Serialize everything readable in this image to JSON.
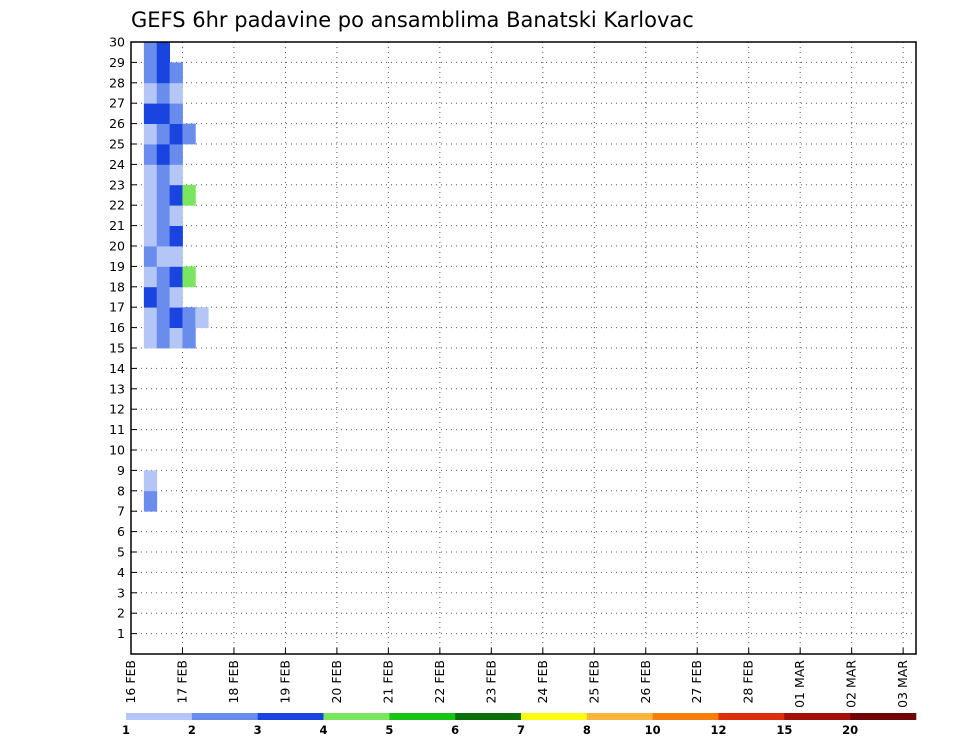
{
  "chart_data": {
    "type": "heatmap",
    "title": "GEFS 6hr padavine po ansamblima Banatski Karlovac",
    "xlabel": "",
    "ylabel": "",
    "x_tick_labels": [
      "16 FEB",
      "17 FEB",
      "18 FEB",
      "19 FEB",
      "20 FEB",
      "21 FEB",
      "22 FEB",
      "23 FEB",
      "24 FEB",
      "25 FEB",
      "26 FEB",
      "27 FEB",
      "28 FEB",
      "01 MAR",
      "02 MAR",
      "03 MAR"
    ],
    "y_range": [
      0,
      30
    ],
    "y_tick_labels": [
      "1",
      "2",
      "3",
      "4",
      "5",
      "6",
      "7",
      "8",
      "9",
      "10",
      "11",
      "12",
      "13",
      "14",
      "15",
      "16",
      "17",
      "18",
      "19",
      "20",
      "21",
      "22",
      "23",
      "24",
      "25",
      "26",
      "27",
      "28",
      "29",
      "30"
    ],
    "time_steps": 61,
    "grid": true,
    "colorbar": {
      "colors": [
        "#b4c6f5",
        "#6a8ced",
        "#1a44e0",
        "#7ae65f",
        "#16c414",
        "#0d6e0d",
        "#fbfb14",
        "#fbb43c",
        "#f77d0c",
        "#dd2e0a",
        "#a31008",
        "#6e0606"
      ],
      "labels": [
        "1",
        "2",
        "3",
        "4",
        "5",
        "6",
        "7",
        "8",
        "10",
        "12",
        "15",
        "20"
      ]
    },
    "cells": [
      [
        8,
        1,
        2
      ],
      [
        9,
        1,
        1
      ],
      [
        16,
        1,
        1
      ],
      [
        16,
        2,
        2
      ],
      [
        16,
        3,
        1
      ],
      [
        16,
        4,
        2
      ],
      [
        17,
        1,
        1
      ],
      [
        17,
        2,
        2
      ],
      [
        17,
        3,
        3
      ],
      [
        17,
        4,
        2
      ],
      [
        17,
        5,
        1
      ],
      [
        18,
        1,
        3
      ],
      [
        18,
        2,
        2
      ],
      [
        18,
        3,
        1
      ],
      [
        19,
        1,
        1
      ],
      [
        19,
        2,
        2
      ],
      [
        19,
        3,
        3
      ],
      [
        19,
        4,
        4
      ],
      [
        20,
        1,
        2
      ],
      [
        20,
        2,
        1
      ],
      [
        20,
        3,
        1
      ],
      [
        21,
        1,
        1
      ],
      [
        21,
        2,
        2
      ],
      [
        21,
        3,
        3
      ],
      [
        22,
        1,
        1
      ],
      [
        22,
        2,
        2
      ],
      [
        22,
        3,
        1
      ],
      [
        23,
        1,
        1
      ],
      [
        23,
        2,
        2
      ],
      [
        23,
        3,
        3
      ],
      [
        23,
        4,
        4
      ],
      [
        24,
        1,
        1
      ],
      [
        24,
        2,
        2
      ],
      [
        24,
        3,
        1
      ],
      [
        25,
        1,
        2
      ],
      [
        25,
        2,
        3
      ],
      [
        25,
        3,
        2
      ],
      [
        26,
        1,
        1
      ],
      [
        26,
        2,
        2
      ],
      [
        26,
        3,
        3
      ],
      [
        26,
        4,
        2
      ],
      [
        27,
        1,
        3
      ],
      [
        27,
        2,
        3
      ],
      [
        27,
        3,
        2
      ],
      [
        28,
        1,
        1
      ],
      [
        28,
        2,
        2
      ],
      [
        28,
        3,
        1
      ],
      [
        29,
        1,
        2
      ],
      [
        29,
        2,
        3
      ],
      [
        29,
        3,
        2
      ],
      [
        30,
        1,
        2
      ],
      [
        30,
        2,
        3
      ]
    ]
  }
}
